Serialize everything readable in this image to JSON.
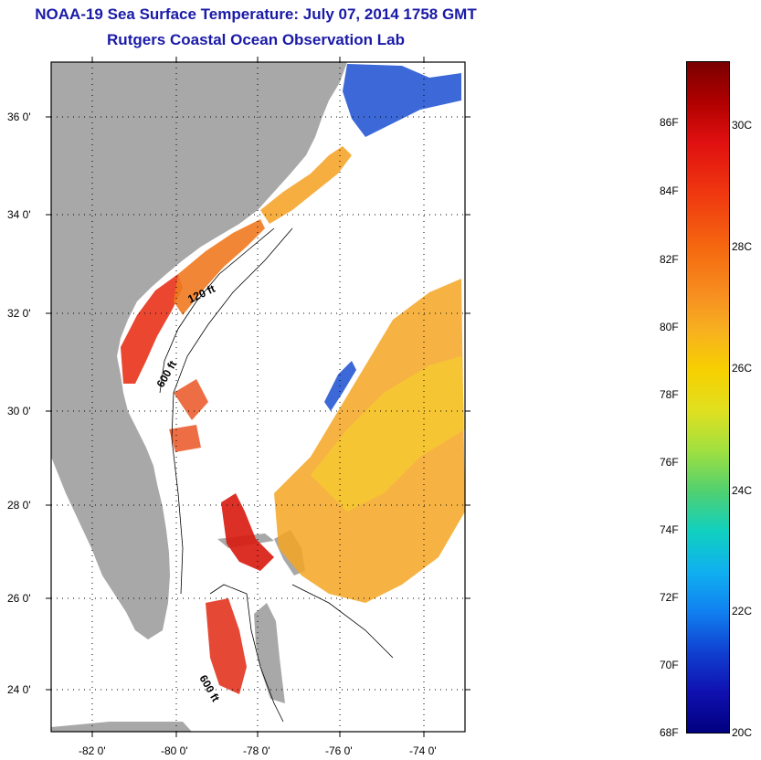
{
  "title": {
    "line1": "NOAA-19 Sea Surface Temperature:  July 07, 2014 1758 GMT",
    "line2": "Rutgers Coastal Ocean Observation Lab"
  },
  "map": {
    "lat_labels": [
      "36 0'",
      "34 0'",
      "32 0'",
      "30 0'",
      "28 0'",
      "26 0'",
      "24 0'"
    ],
    "lon_labels": [
      "-82 0'",
      "-80 0'",
      "-78 0'",
      "-76 0'",
      "-74 0'"
    ],
    "isobath_labels": [
      "120 ft",
      "600 ft",
      "600 ft"
    ],
    "colors": {
      "land": "#a8a8a8",
      "ocean_nodata": "#ffffff",
      "warm": "#e8321a",
      "mid": "#f5a623",
      "cool": "#1a4fd0"
    }
  },
  "colorbar": {
    "f_labels": [
      "86F",
      "84F",
      "82F",
      "80F",
      "78F",
      "76F",
      "74F",
      "72F",
      "70F",
      "68F"
    ],
    "c_labels": [
      "30C",
      "28C",
      "26C",
      "24C",
      "22C",
      "20C"
    ]
  }
}
